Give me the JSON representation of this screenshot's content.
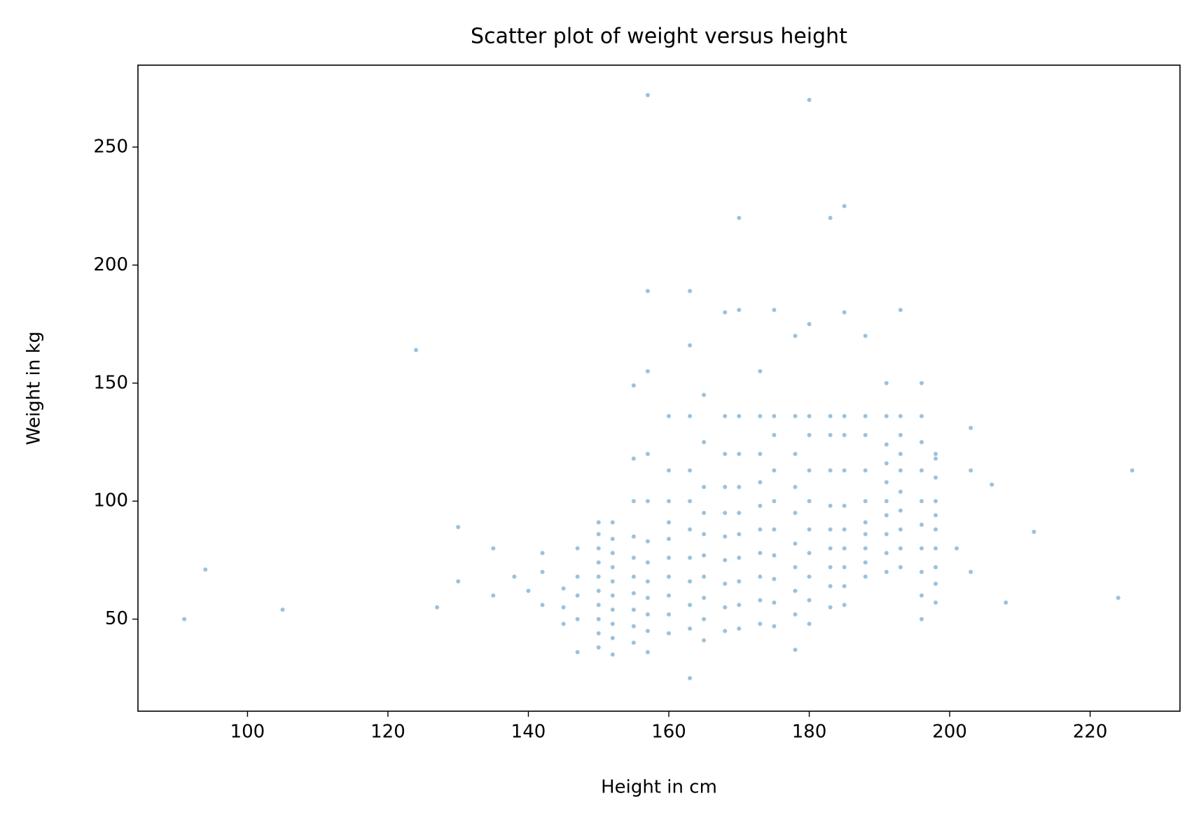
{
  "chart_data": {
    "type": "scatter",
    "title": "Scatter plot of weight versus height",
    "x_label": "Height in cm",
    "y_label": "Weight in kg",
    "color": "#1f77b4",
    "alpha": 0.45,
    "xlim": [
      84.4,
      232.8
    ],
    "ylim": [
      11,
      284.7
    ],
    "xticks": [
      100,
      120,
      140,
      160,
      180,
      200,
      220
    ],
    "yticks": [
      50,
      100,
      150,
      200,
      250
    ],
    "x": [
      150,
      150,
      150,
      150,
      150,
      150,
      150,
      150,
      150,
      150,
      152,
      152,
      152,
      152,
      152,
      152,
      152,
      152,
      152,
      152,
      155,
      155,
      155,
      155,
      155,
      155,
      155,
      155,
      155,
      155,
      157,
      157,
      157,
      157,
      157,
      157,
      157,
      157,
      157,
      157,
      160,
      160,
      160,
      160,
      160,
      160,
      160,
      160,
      160,
      160,
      163,
      163,
      163,
      163,
      163,
      163,
      163,
      163,
      163,
      163,
      165,
      165,
      165,
      165,
      165,
      165,
      165,
      165,
      165,
      165,
      168,
      168,
      168,
      168,
      168,
      168,
      168,
      168,
      168,
      168,
      170,
      170,
      170,
      170,
      170,
      170,
      170,
      170,
      170,
      170,
      173,
      173,
      173,
      173,
      173,
      173,
      173,
      173,
      173,
      173,
      175,
      175,
      175,
      175,
      175,
      175,
      175,
      175,
      175,
      175,
      178,
      178,
      178,
      178,
      178,
      178,
      178,
      178,
      178,
      178,
      180,
      180,
      180,
      180,
      180,
      180,
      180,
      180,
      180,
      180,
      183,
      183,
      183,
      183,
      183,
      183,
      183,
      183,
      183,
      183,
      185,
      185,
      185,
      185,
      185,
      185,
      185,
      185,
      185,
      185,
      188,
      188,
      188,
      188,
      188,
      188,
      188,
      188,
      188,
      188,
      191,
      191,
      191,
      191,
      191,
      191,
      191,
      191,
      191,
      191,
      193,
      193,
      193,
      193,
      193,
      193,
      193,
      193,
      193,
      193,
      196,
      196,
      196,
      196,
      196,
      196,
      196,
      196,
      196,
      196,
      198,
      198,
      198,
      198,
      198,
      198,
      198,
      198,
      198,
      198,
      91,
      94,
      105,
      124,
      127,
      130,
      130,
      135,
      135,
      138,
      140,
      142,
      142,
      142,
      145,
      145,
      145,
      147,
      147,
      147,
      147,
      147,
      201,
      203,
      203,
      203,
      206,
      208,
      212,
      224,
      226,
      157,
      163,
      185,
      170,
      180,
      157
    ],
    "values": [
      38,
      44,
      50,
      56,
      62,
      68,
      74,
      80,
      86,
      91,
      35,
      42,
      48,
      54,
      60,
      66,
      72,
      78,
      84,
      91,
      40,
      47,
      54,
      61,
      68,
      76,
      85,
      100,
      118,
      149,
      36,
      45,
      52,
      59,
      66,
      74,
      83,
      100,
      120,
      155,
      44,
      52,
      60,
      68,
      76,
      84,
      91,
      100,
      113,
      136,
      25,
      46,
      56,
      66,
      76,
      88,
      100,
      113,
      136,
      166,
      41,
      50,
      59,
      68,
      77,
      86,
      95,
      106,
      125,
      145,
      45,
      55,
      65,
      75,
      85,
      95,
      106,
      120,
      136,
      180,
      46,
      56,
      66,
      76,
      86,
      95,
      106,
      120,
      136,
      181,
      48,
      58,
      68,
      78,
      88,
      98,
      108,
      120,
      136,
      155,
      47,
      57,
      67,
      77,
      88,
      100,
      113,
      128,
      136,
      181,
      37,
      52,
      62,
      72,
      82,
      95,
      106,
      120,
      136,
      170,
      48,
      58,
      68,
      78,
      88,
      100,
      113,
      128,
      136,
      175,
      55,
      64,
      72,
      80,
      88,
      98,
      113,
      128,
      136,
      220,
      56,
      64,
      72,
      80,
      88,
      98,
      113,
      128,
      136,
      180,
      68,
      74,
      80,
      86,
      91,
      100,
      113,
      128,
      136,
      170,
      70,
      78,
      86,
      94,
      100,
      108,
      116,
      124,
      136,
      150,
      72,
      80,
      88,
      96,
      104,
      113,
      120,
      128,
      136,
      181,
      50,
      60,
      70,
      80,
      90,
      100,
      113,
      125,
      136,
      150,
      57,
      65,
      72,
      80,
      88,
      94,
      100,
      110,
      118,
      120,
      50,
      71,
      54,
      164,
      55,
      89,
      66,
      60,
      80,
      68,
      62,
      70,
      56,
      78,
      55,
      63,
      48,
      36,
      50,
      60,
      68,
      80,
      80,
      70,
      113,
      131,
      107,
      57,
      87,
      59,
      113,
      189,
      189,
      225,
      220,
      270,
      272
    ]
  }
}
